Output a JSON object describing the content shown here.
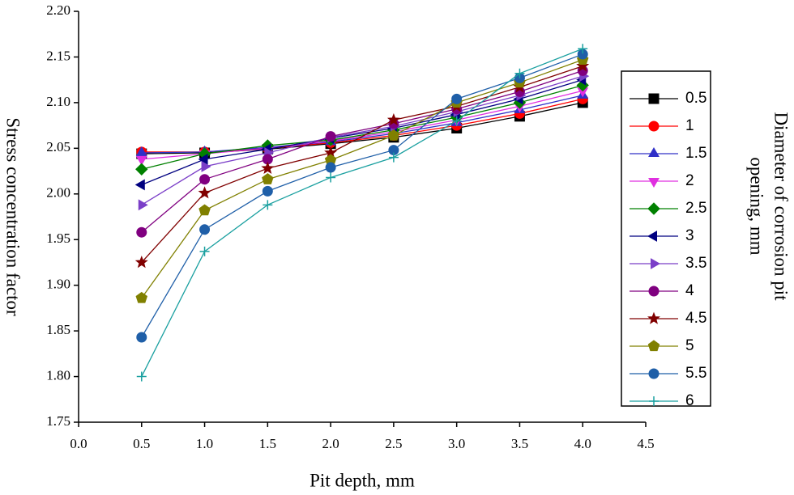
{
  "chart_data": {
    "type": "line",
    "x_label": "Pit depth, mm",
    "y_label": "Stress concentration factor",
    "legend_title": [
      "Diameter of corrosion pit",
      "opening, mm"
    ],
    "legend_position": "right",
    "x": [
      0.5,
      1,
      1.5,
      2,
      2.5,
      3,
      3.5,
      4
    ],
    "xlim": [
      0,
      4.5
    ],
    "xticks": [
      {
        "value": 0,
        "label": "0.0"
      },
      {
        "value": 0.5,
        "label": "0.5"
      },
      {
        "value": 1,
        "label": "1.0"
      },
      {
        "value": 1.5,
        "label": "1.5"
      },
      {
        "value": 2,
        "label": "2.0"
      },
      {
        "value": 2.5,
        "label": "2.5"
      },
      {
        "value": 3,
        "label": "3.0"
      },
      {
        "value": 3.5,
        "label": "3.5"
      },
      {
        "value": 4,
        "label": "4.0"
      },
      {
        "value": 4.5,
        "label": "4.5"
      }
    ],
    "ylim": [
      1.75,
      2.2
    ],
    "yticks": [
      {
        "value": 1.75,
        "label": "1.75"
      },
      {
        "value": 1.8,
        "label": "1.80"
      },
      1.85,
      {
        "value": 1.9,
        "label": "1.90"
      },
      1.95,
      {
        "value": 2,
        "label": "2.00"
      },
      2.05,
      {
        "value": 2.1,
        "label": "2.10"
      },
      2.15,
      {
        "value": 2.2,
        "label": "2.20"
      }
    ],
    "series": [
      {
        "name": "0.5",
        "color": "#000000",
        "marker": "square",
        "values": [
          2.044,
          2.045,
          2.049,
          2.055,
          2.062,
          2.072,
          2.085,
          2.1
        ]
      },
      {
        "name": "1",
        "color": "#ff0000",
        "marker": "circle",
        "values": [
          2.046,
          2.046,
          2.05,
          2.056,
          2.064,
          2.075,
          2.088,
          2.104
        ]
      },
      {
        "name": "1.5",
        "color": "#3030c8",
        "marker": "triangle-up",
        "values": [
          2.045,
          2.046,
          2.051,
          2.057,
          2.066,
          2.078,
          2.092,
          2.108
        ]
      },
      {
        "name": "2",
        "color": "#e030e0",
        "marker": "triangle-down",
        "values": [
          2.038,
          2.044,
          2.05,
          2.058,
          2.068,
          2.081,
          2.096,
          2.113
        ]
      },
      {
        "name": "2.5",
        "color": "#008000",
        "marker": "diamond",
        "values": [
          2.027,
          2.044,
          2.053,
          2.059,
          2.07,
          2.084,
          2.1,
          2.119
        ]
      },
      {
        "name": "3",
        "color": "#000080",
        "marker": "triangle-left",
        "values": [
          2.01,
          2.038,
          2.049,
          2.061,
          2.072,
          2.087,
          2.104,
          2.125
        ]
      },
      {
        "name": "3.5",
        "color": "#7b3fc8",
        "marker": "triangle-right",
        "values": [
          1.988,
          2.03,
          2.045,
          2.062,
          2.074,
          2.09,
          2.108,
          2.129
        ]
      },
      {
        "name": "4",
        "color": "#800080",
        "marker": "circle",
        "values": [
          1.958,
          2.016,
          2.038,
          2.063,
          2.077,
          2.093,
          2.112,
          2.135
        ]
      },
      {
        "name": "4.5",
        "color": "#800000",
        "marker": "star",
        "values": [
          1.925,
          2.001,
          2.028,
          2.045,
          2.081,
          2.096,
          2.117,
          2.14
        ]
      },
      {
        "name": "5",
        "color": "#808000",
        "marker": "pentagon",
        "values": [
          1.886,
          1.982,
          2.016,
          2.037,
          2.064,
          2.1,
          2.122,
          2.147
        ]
      },
      {
        "name": "5.5",
        "color": "#1f5fa8",
        "marker": "circle",
        "values": [
          1.843,
          1.961,
          2.003,
          2.029,
          2.048,
          2.104,
          2.127,
          2.153
        ]
      },
      {
        "name": "6",
        "color": "#1aa0a0",
        "marker": "plus",
        "values": [
          1.8,
          1.937,
          1.988,
          2.018,
          2.04,
          2.08,
          2.132,
          2.159
        ]
      }
    ]
  }
}
